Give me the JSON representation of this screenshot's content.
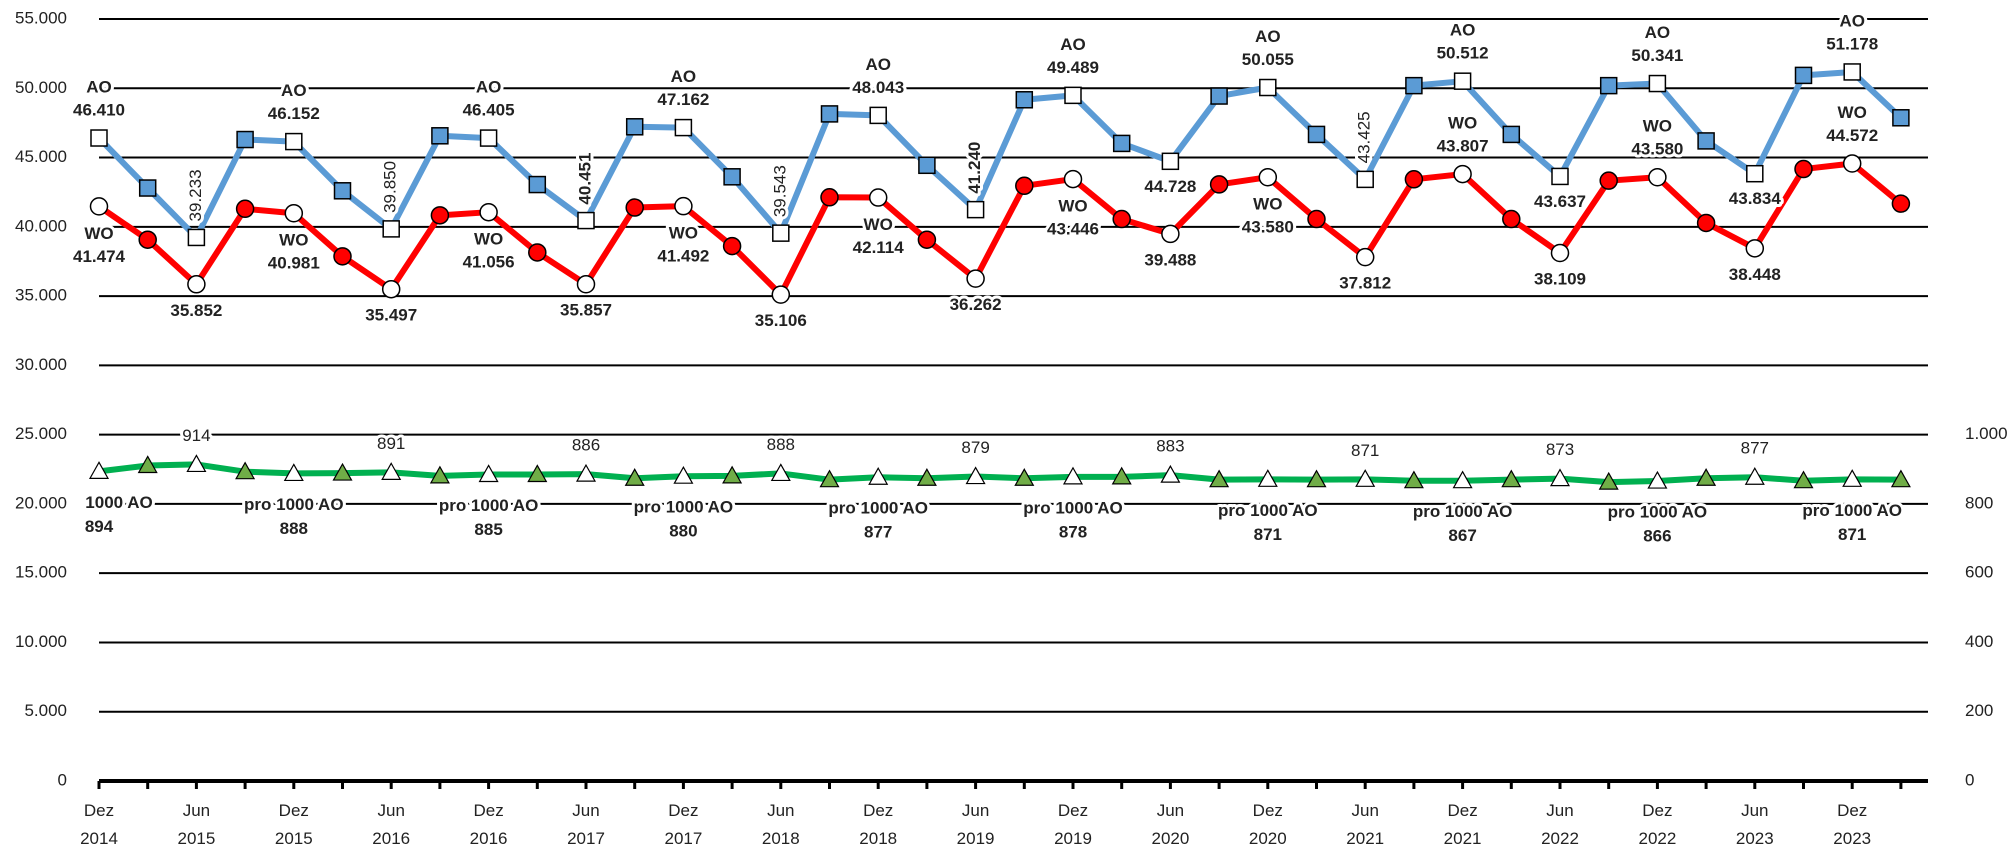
{
  "chart_data": {
    "type": "line",
    "categories": [
      "Dez 2014",
      null,
      "Jun 2015",
      null,
      "Dez 2015",
      null,
      "Jun 2016",
      null,
      "Dez 2016",
      null,
      "Jun 2017",
      null,
      "Dez 2017",
      null,
      "Jun 2018",
      null,
      "Dez 2018",
      null,
      "Jun 2019",
      null,
      "Dez 2019",
      null,
      "Jun 2020",
      null,
      "Dez 2020",
      null,
      "Jun 2021",
      null,
      "Dez 2021",
      null,
      "Jun 2022",
      null,
      "Dez 2022",
      null,
      "Jun 2023",
      null,
      "Dez 2023",
      null
    ],
    "series": [
      {
        "name": "AO",
        "color": "#5b9bd5",
        "marker": "square",
        "values": [
          46410,
          42800,
          39233,
          46300,
          46152,
          42600,
          39850,
          46570,
          46405,
          43050,
          40451,
          47220,
          47162,
          43610,
          39543,
          48150,
          48043,
          44440,
          41240,
          49170,
          49489,
          46020,
          44728,
          49440,
          50055,
          46670,
          43425,
          50190,
          50512,
          46670,
          43637,
          50190,
          50341,
          46200,
          43834,
          50930,
          51178,
          47870
        ],
        "value_labels": [
          "46.410",
          null,
          "39.233",
          null,
          "46.152",
          null,
          "39.850",
          null,
          "46.405",
          null,
          "40.451",
          null,
          "47.162",
          null,
          "39.543",
          null,
          "48.043",
          null,
          "41.240",
          null,
          "49.489",
          null,
          "44.728",
          null,
          "50.055",
          null,
          "43.425",
          null,
          "50.512",
          null,
          "43.637",
          null,
          "50.341",
          null,
          "43.834",
          null,
          "51.178",
          null
        ]
      },
      {
        "name": "WO",
        "color": "#ff0000",
        "marker": "circle",
        "values": [
          41474,
          39070,
          35852,
          41300,
          40981,
          37870,
          35497,
          40830,
          41056,
          38150,
          35857,
          41390,
          41492,
          38610,
          35106,
          42130,
          42114,
          39070,
          36262,
          42960,
          43446,
          40560,
          39488,
          43060,
          43580,
          40560,
          37812,
          43430,
          43807,
          40560,
          38109,
          43330,
          43580,
          40280,
          38448,
          44170,
          44572,
          41670
        ],
        "value_labels": [
          "41.474",
          null,
          "35.852",
          null,
          "40.981",
          null,
          "35.497",
          null,
          "41.056",
          null,
          "35.857",
          null,
          "41.492",
          null,
          "35.106",
          null,
          "42.114",
          null,
          "36.262",
          null,
          "43.446",
          null,
          "39.488",
          null,
          "43.580",
          null,
          "37.812",
          null,
          "43.807",
          null,
          "38.109",
          null,
          "43.580",
          null,
          "38.448",
          null,
          "44.572",
          null
        ]
      },
      {
        "name": "pro 1000 AO",
        "color": "#00b050",
        "marker": "triangle",
        "axis": "y2",
        "values": [
          894,
          911,
          914,
          893,
          888,
          889,
          891,
          881,
          885,
          885,
          886,
          874,
          880,
          881,
          888,
          870,
          877,
          874,
          879,
          874,
          878,
          878,
          883,
          870,
          871,
          870,
          871,
          867,
          867,
          870,
          873,
          863,
          866,
          874,
          877,
          867,
          871,
          870
        ]
      }
    ],
    "annotations": [
      "1000 AO"
    ],
    "ylim": [
      0,
      55000
    ],
    "yticks": [
      0,
      {
        "value": 5000,
        "label": "5.000"
      },
      {
        "value": 10000,
        "label": "10.000"
      },
      {
        "value": 15000,
        "label": "15.000"
      },
      {
        "value": 20000,
        "label": "20.000"
      },
      {
        "value": 25000,
        "label": "25.000"
      },
      {
        "value": 30000,
        "label": "30.000"
      },
      {
        "value": 35000,
        "label": "35.000"
      },
      {
        "value": 40000,
        "label": "40.000"
      },
      {
        "value": 45000,
        "label": "45.000"
      },
      {
        "value": 50000,
        "label": "50.000"
      },
      {
        "value": 55000,
        "label": "55.000"
      }
    ],
    "y2lim": [
      0,
      2200
    ],
    "y2ticks": [
      0,
      200,
      400,
      600,
      800,
      {
        "value": 1000,
        "label": "1.000"
      }
    ],
    "grid": true
  }
}
